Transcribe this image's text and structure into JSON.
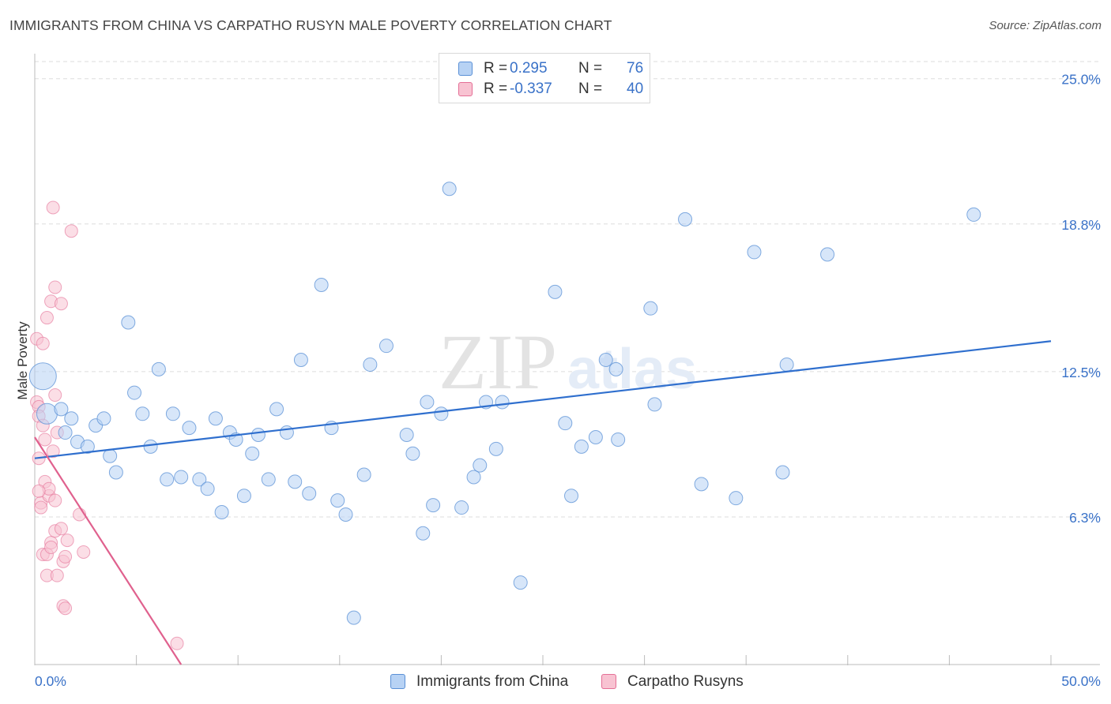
{
  "title": "IMMIGRANTS FROM CHINA VS CARPATHO RUSYN MALE POVERTY CORRELATION CHART",
  "source": "Source: ZipAtlas.com",
  "watermark": {
    "zip": "ZIP",
    "atlas": "atlas"
  },
  "legend": {
    "r_label": "R =",
    "n_label": "N =",
    "china": {
      "r": "0.295",
      "n": "76"
    },
    "rusyn": {
      "r": "-0.337",
      "n": "40"
    }
  },
  "chart_data": {
    "type": "scatter",
    "title": "IMMIGRANTS FROM CHINA VS CARPATHO RUSYN MALE POVERTY CORRELATION CHART",
    "xlabel": "",
    "ylabel": "Male Poverty",
    "xlim": [
      0,
      50
    ],
    "ylim": [
      0,
      26
    ],
    "x_tick_labels": [
      "0.0%",
      "50.0%"
    ],
    "y_ticks": [
      6.3,
      12.5,
      18.8,
      25.0
    ],
    "y_tick_labels": [
      "6.3%",
      "12.5%",
      "18.8%",
      "25.0%"
    ],
    "grid": true,
    "colors": {
      "china_fill": "#b7d2f4",
      "china_stroke": "#5a90d6",
      "china_line": "#2f6fce",
      "rusyn_fill": "#f8c3d2",
      "rusyn_stroke": "#e46f96",
      "rusyn_line": "#e0618e",
      "axis_text": "#3a72c8",
      "grid": "#dddddd"
    },
    "series": [
      {
        "name": "Immigrants from China",
        "r": 0.295,
        "n": 76,
        "trend": {
          "x0": 0,
          "y0": 8.8,
          "x1": 50,
          "y1": 13.8
        },
        "points": [
          [
            0.4,
            12.3,
            3
          ],
          [
            0.6,
            10.7,
            2
          ],
          [
            1.3,
            10.9,
            1
          ],
          [
            1.5,
            9.9,
            1
          ],
          [
            1.8,
            10.5,
            1
          ],
          [
            2.1,
            9.5,
            1
          ],
          [
            2.6,
            9.3,
            1
          ],
          [
            3.0,
            10.2,
            1
          ],
          [
            3.4,
            10.5,
            1
          ],
          [
            3.7,
            8.9,
            1
          ],
          [
            4.0,
            8.2,
            1
          ],
          [
            4.6,
            14.6,
            1
          ],
          [
            4.9,
            11.6,
            1
          ],
          [
            5.3,
            10.7,
            1
          ],
          [
            5.7,
            9.3,
            1
          ],
          [
            6.1,
            12.6,
            1
          ],
          [
            6.5,
            7.9,
            1
          ],
          [
            6.8,
            10.7,
            1
          ],
          [
            7.2,
            8.0,
            1
          ],
          [
            7.6,
            10.1,
            1
          ],
          [
            8.1,
            7.9,
            1
          ],
          [
            8.5,
            7.5,
            1
          ],
          [
            8.9,
            10.5,
            1
          ],
          [
            9.2,
            6.5,
            1
          ],
          [
            9.6,
            9.9,
            1
          ],
          [
            9.9,
            9.6,
            1
          ],
          [
            10.3,
            7.2,
            1
          ],
          [
            10.7,
            9.0,
            1
          ],
          [
            11.0,
            9.8,
            1
          ],
          [
            11.5,
            7.9,
            1
          ],
          [
            11.9,
            10.9,
            1
          ],
          [
            12.4,
            9.9,
            1
          ],
          [
            12.8,
            7.8,
            1
          ],
          [
            13.1,
            13.0,
            1
          ],
          [
            13.5,
            7.3,
            1
          ],
          [
            14.1,
            16.2,
            1
          ],
          [
            14.6,
            10.1,
            1
          ],
          [
            14.9,
            7.0,
            1
          ],
          [
            15.3,
            6.4,
            1
          ],
          [
            15.7,
            2.0,
            1
          ],
          [
            16.2,
            8.1,
            1
          ],
          [
            16.5,
            12.8,
            1
          ],
          [
            17.3,
            13.6,
            1
          ],
          [
            18.3,
            9.8,
            1
          ],
          [
            18.6,
            9.0,
            1
          ],
          [
            19.1,
            5.6,
            1
          ],
          [
            19.3,
            11.2,
            1
          ],
          [
            19.6,
            6.8,
            1
          ],
          [
            20.0,
            10.7,
            1
          ],
          [
            20.4,
            20.3,
            1
          ],
          [
            21.0,
            6.7,
            1
          ],
          [
            21.6,
            8.0,
            1
          ],
          [
            21.9,
            8.5,
            1
          ],
          [
            22.2,
            11.2,
            1
          ],
          [
            22.7,
            9.2,
            1
          ],
          [
            23.0,
            11.2,
            1
          ],
          [
            23.9,
            3.5,
            1
          ],
          [
            25.6,
            15.9,
            1
          ],
          [
            26.1,
            10.3,
            1
          ],
          [
            26.4,
            7.2,
            1
          ],
          [
            26.9,
            9.3,
            1
          ],
          [
            27.6,
            9.7,
            1
          ],
          [
            28.1,
            13.0,
            1
          ],
          [
            28.6,
            12.6,
            1
          ],
          [
            28.7,
            9.6,
            1
          ],
          [
            30.3,
            15.2,
            1
          ],
          [
            30.5,
            11.1,
            1
          ],
          [
            32.0,
            19.0,
            1
          ],
          [
            32.8,
            7.7,
            1
          ],
          [
            34.5,
            7.1,
            1
          ],
          [
            35.4,
            17.6,
            1
          ],
          [
            36.8,
            8.2,
            1
          ],
          [
            37.0,
            12.8,
            1
          ],
          [
            39.0,
            17.5,
            1
          ],
          [
            46.2,
            19.2,
            1
          ]
        ]
      },
      {
        "name": "Carpatho Rusyns",
        "r": -0.337,
        "n": 40,
        "trend": {
          "x0": 0,
          "y0": 9.7,
          "x1": 7.2,
          "y1": 0
        },
        "points": [
          [
            0.1,
            11.2
          ],
          [
            0.1,
            13.9
          ],
          [
            0.2,
            11.0
          ],
          [
            0.2,
            8.8
          ],
          [
            0.2,
            10.6
          ],
          [
            0.3,
            6.9
          ],
          [
            0.3,
            6.7
          ],
          [
            0.4,
            10.2
          ],
          [
            0.4,
            13.7
          ],
          [
            0.4,
            4.7
          ],
          [
            0.5,
            9.6
          ],
          [
            0.5,
            7.8
          ],
          [
            0.6,
            14.8
          ],
          [
            0.6,
            4.7
          ],
          [
            0.6,
            3.8
          ],
          [
            0.7,
            7.2
          ],
          [
            0.7,
            7.5
          ],
          [
            0.8,
            5.2
          ],
          [
            0.8,
            5.0
          ],
          [
            0.8,
            15.5
          ],
          [
            0.9,
            19.5
          ],
          [
            0.9,
            9.1
          ],
          [
            1.0,
            5.7
          ],
          [
            1.0,
            16.1
          ],
          [
            1.0,
            7.0
          ],
          [
            1.0,
            11.5
          ],
          [
            1.1,
            3.8
          ],
          [
            1.1,
            9.9
          ],
          [
            1.3,
            5.8
          ],
          [
            1.3,
            15.4
          ],
          [
            1.4,
            2.5
          ],
          [
            1.4,
            4.4
          ],
          [
            1.5,
            4.6
          ],
          [
            1.5,
            2.4
          ],
          [
            1.6,
            5.3
          ],
          [
            1.8,
            18.5
          ],
          [
            2.2,
            6.4
          ],
          [
            2.4,
            4.8
          ],
          [
            7.0,
            0.9
          ],
          [
            0.2,
            7.4
          ]
        ]
      }
    ]
  }
}
